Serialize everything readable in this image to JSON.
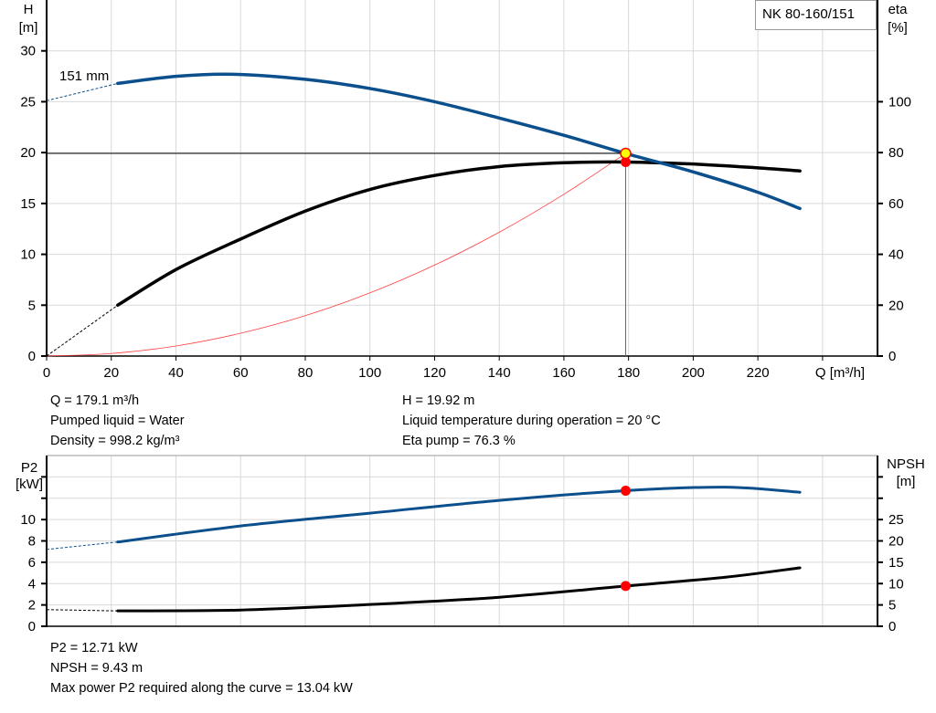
{
  "chart_data": [
    {
      "type": "line",
      "title": "NK 80-160/151",
      "xlabel": "Q [m³/h]",
      "ylabel_left": [
        "H",
        "[m]"
      ],
      "ylabel_right": [
        "eta",
        "[%]"
      ],
      "xlim": [
        0,
        257
      ],
      "xticks": [
        0,
        20,
        40,
        60,
        80,
        100,
        120,
        140,
        160,
        180,
        200,
        220
      ],
      "ylim_left": [
        0,
        35
      ],
      "yticks_left": [
        0,
        5,
        10,
        15,
        20,
        25,
        30
      ],
      "ylim_right": [
        0,
        140
      ],
      "yticks_right": [
        0,
        20,
        40,
        60,
        80,
        100
      ],
      "grid": true,
      "impeller_label": "151 mm",
      "series": [
        {
          "key": "head",
          "color": "#0b4f8c",
          "x": [
            22,
            40,
            57.8,
            80,
            100,
            120,
            140,
            160,
            179.1,
            200,
            220,
            233
          ],
          "y": [
            26.8,
            27.5,
            27.7,
            27.2,
            26.3,
            25.0,
            23.4,
            21.7,
            19.92,
            18.1,
            16.1,
            14.5
          ],
          "extrapolated": {
            "x": [
              0,
              22
            ],
            "y": [
              25.1,
              26.8
            ]
          }
        },
        {
          "key": "efficiency",
          "axis": "right",
          "color": "#000000",
          "x": [
            22,
            40,
            60,
            80,
            100,
            120,
            140,
            160,
            179.1,
            200,
            220,
            233
          ],
          "y": [
            20,
            34,
            46,
            57,
            65.5,
            71,
            74.5,
            76,
            76.3,
            75.5,
            74,
            72.8
          ],
          "extrapolated": {
            "x": [
              0,
              22
            ],
            "y": [
              0,
              20
            ]
          }
        },
        {
          "key": "system-curve",
          "color": "#ff4040",
          "x": [
            0,
            20,
            40,
            60,
            80,
            100,
            120,
            140,
            160,
            179.1
          ],
          "y": [
            0,
            0.25,
            0.99,
            2.24,
            3.97,
            6.21,
            8.94,
            12.17,
            15.9,
            19.92
          ]
        }
      ],
      "operating_point": {
        "Q": 179.1,
        "H": 19.92,
        "eta": 76.3
      }
    },
    {
      "type": "line",
      "ylabel_left": [
        "P2",
        "[kW]"
      ],
      "ylabel_right": [
        "NPSH",
        "[m]"
      ],
      "xlim": [
        0,
        257
      ],
      "ylim_left": [
        0,
        16
      ],
      "yticks_left": [
        0,
        2,
        4,
        6,
        8,
        10
      ],
      "yticks_left_unlabeled": [
        12,
        14
      ],
      "ylim_right": [
        0,
        40
      ],
      "yticks_right": [
        0,
        5,
        10,
        15,
        20,
        25
      ],
      "yticks_right_unlabeled": [
        30,
        35
      ],
      "grid": true,
      "series": [
        {
          "key": "power-p2",
          "color": "#0b4f8c",
          "x": [
            22,
            60,
            100,
            140,
            179.1,
            210,
            233
          ],
          "y": [
            7.9,
            9.4,
            10.6,
            11.8,
            12.71,
            13.04,
            12.56
          ],
          "extrapolated": {
            "x": [
              0,
              22
            ],
            "y": [
              7.2,
              7.9
            ]
          }
        },
        {
          "key": "npsh",
          "axis": "right",
          "color": "#000000",
          "x": [
            22,
            60,
            100,
            140,
            179.1,
            210,
            233
          ],
          "y": [
            3.6,
            3.8,
            5.1,
            6.8,
            9.43,
            11.5,
            13.7
          ],
          "extrapolated": {
            "x": [
              0,
              22
            ],
            "y": [
              3.9,
              3.6
            ]
          }
        }
      ],
      "operating_point": {
        "Q": 179.1,
        "P2": 12.71,
        "NPSH": 9.43
      }
    }
  ],
  "info_top": {
    "q": "Q = 179.1 m³/h",
    "liquid": "Pumped liquid = Water",
    "density": "Density = 998.2 kg/m³",
    "h": "H = 19.92 m",
    "temp": "Liquid temperature during operation = 20 °C",
    "eta": "Eta pump = 76.3 %"
  },
  "info_bottom": {
    "p2": "P2 = 12.71 kW",
    "npsh": "NPSH = 9.43 m",
    "max_p2": "Max power P2 required along the curve = 13.04 kW"
  },
  "colors": {
    "blue": "#0b4f8c",
    "red": "#ff0000",
    "yellow": "#ffff00",
    "grid": "#d9d9d9"
  }
}
